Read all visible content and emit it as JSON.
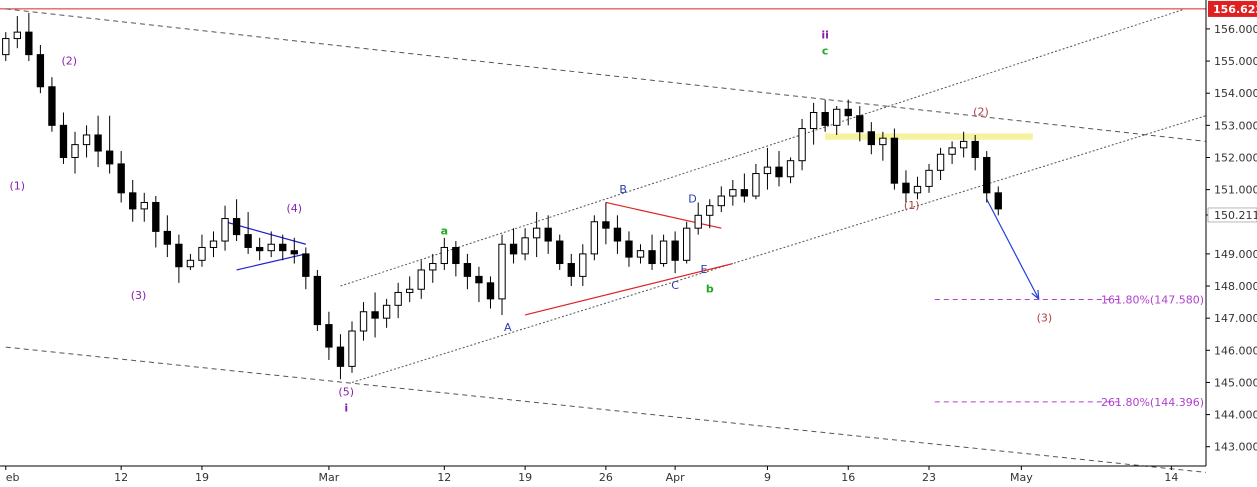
{
  "chart_data": {
    "type": "candlestick",
    "instrument_price_level": 156.622,
    "current_price": 150.211,
    "y_range": [
      142.4,
      156.9
    ],
    "y_ticks": [
      "156.000",
      "155.000",
      "154.000",
      "153.000",
      "152.000",
      "151.000",
      "150.211",
      "149.000",
      "148.000",
      "147.000",
      "146.000",
      "145.000",
      "144.000",
      "143.000"
    ],
    "x_ticks": [
      {
        "label": "eb",
        "idx": 0
      },
      {
        "label": "12",
        "idx": 10
      },
      {
        "label": "19",
        "idx": 17
      },
      {
        "label": "Mar",
        "idx": 28
      },
      {
        "label": "12",
        "idx": 38
      },
      {
        "label": "19",
        "idx": 45
      },
      {
        "label": "26",
        "idx": 52
      },
      {
        "label": "Apr",
        "idx": 58
      },
      {
        "label": "9",
        "idx": 66
      },
      {
        "label": "16",
        "idx": 73
      },
      {
        "label": "23",
        "idx": 80
      },
      {
        "label": "May",
        "idx": 88
      },
      {
        "label": "14",
        "idx": 101
      }
    ],
    "grid": false,
    "price_label": {
      "value": "156.622",
      "bg": "#e02020"
    },
    "current_label": {
      "value": "150.211"
    },
    "colors": {
      "up": "#ffffff",
      "down": "#000000",
      "wick": "#000000",
      "resistance": "#e02020",
      "triangle": "#2020cc",
      "correction_line": "#e02020",
      "fib": "#b040d0",
      "highlight": "#f7f2a0",
      "arrow": "#2040e0",
      "purple": "#8a20b0",
      "green": "#22aa22",
      "blue": "#2a3ab0",
      "brown": "#b04040"
    },
    "candles": [
      [
        155.2,
        155.9,
        155.0,
        155.7
      ],
      [
        155.7,
        156.4,
        155.4,
        155.9
      ],
      [
        155.9,
        156.5,
        155.0,
        155.2
      ],
      [
        155.2,
        155.5,
        154.0,
        154.2
      ],
      [
        154.2,
        154.5,
        152.8,
        153.0
      ],
      [
        153.0,
        153.4,
        151.8,
        152.0
      ],
      [
        152.0,
        152.8,
        151.5,
        152.4
      ],
      [
        152.4,
        153.0,
        152.0,
        152.7
      ],
      [
        152.7,
        153.3,
        151.7,
        152.2
      ],
      [
        152.2,
        153.3,
        151.5,
        151.8
      ],
      [
        151.8,
        152.2,
        150.6,
        150.9
      ],
      [
        150.9,
        151.3,
        150.0,
        150.4
      ],
      [
        150.4,
        150.9,
        150.0,
        150.6
      ],
      [
        150.6,
        150.8,
        149.2,
        149.7
      ],
      [
        149.7,
        150.2,
        148.9,
        149.3
      ],
      [
        149.3,
        149.6,
        148.1,
        148.6
      ],
      [
        148.6,
        149.0,
        148.5,
        148.8
      ],
      [
        148.8,
        149.6,
        148.6,
        149.2
      ],
      [
        149.2,
        149.7,
        148.9,
        149.4
      ],
      [
        149.4,
        150.5,
        149.1,
        150.1
      ],
      [
        150.1,
        150.7,
        149.4,
        149.6
      ],
      [
        149.6,
        150.3,
        149.0,
        149.2
      ],
      [
        149.2,
        149.5,
        148.8,
        149.1
      ],
      [
        149.1,
        149.7,
        148.9,
        149.3
      ],
      [
        149.3,
        149.6,
        148.8,
        149.1
      ],
      [
        149.1,
        149.5,
        148.7,
        149.0
      ],
      [
        149.0,
        149.2,
        147.9,
        148.3
      ],
      [
        148.3,
        148.5,
        146.6,
        146.8
      ],
      [
        146.8,
        147.2,
        145.7,
        146.1
      ],
      [
        146.1,
        146.5,
        145.1,
        145.5
      ],
      [
        145.5,
        146.9,
        145.3,
        146.6
      ],
      [
        146.6,
        147.5,
        146.3,
        147.2
      ],
      [
        147.2,
        147.8,
        146.4,
        147.0
      ],
      [
        147.0,
        147.6,
        146.7,
        147.4
      ],
      [
        147.4,
        148.1,
        147.0,
        147.8
      ],
      [
        147.8,
        148.3,
        147.5,
        147.9
      ],
      [
        147.9,
        148.8,
        147.6,
        148.5
      ],
      [
        148.5,
        149.0,
        148.1,
        148.7
      ],
      [
        148.7,
        149.5,
        148.5,
        149.2
      ],
      [
        149.2,
        149.4,
        148.3,
        148.7
      ],
      [
        148.7,
        149.0,
        147.9,
        148.3
      ],
      [
        148.3,
        148.6,
        147.5,
        148.1
      ],
      [
        148.1,
        148.3,
        147.3,
        147.6
      ],
      [
        147.6,
        149.6,
        147.1,
        149.3
      ],
      [
        149.3,
        149.8,
        148.7,
        149.0
      ],
      [
        149.0,
        149.8,
        148.8,
        149.5
      ],
      [
        149.5,
        150.3,
        148.9,
        149.8
      ],
      [
        149.8,
        150.2,
        149.0,
        149.4
      ],
      [
        149.4,
        149.6,
        148.5,
        148.7
      ],
      [
        148.7,
        149.0,
        148.0,
        148.3
      ],
      [
        148.3,
        149.3,
        148.0,
        149.0
      ],
      [
        149.0,
        150.2,
        148.8,
        150.0
      ],
      [
        150.0,
        150.6,
        149.3,
        149.8
      ],
      [
        149.8,
        150.2,
        149.0,
        149.4
      ],
      [
        149.4,
        149.7,
        148.6,
        148.9
      ],
      [
        148.9,
        149.3,
        148.7,
        149.1
      ],
      [
        149.1,
        149.6,
        148.5,
        148.7
      ],
      [
        148.7,
        149.6,
        148.6,
        149.4
      ],
      [
        149.4,
        149.7,
        148.4,
        148.8
      ],
      [
        148.8,
        150.0,
        148.7,
        149.8
      ],
      [
        149.8,
        150.6,
        149.6,
        150.2
      ],
      [
        150.2,
        150.7,
        149.8,
        150.5
      ],
      [
        150.5,
        151.1,
        150.3,
        150.8
      ],
      [
        150.8,
        151.3,
        150.5,
        151.0
      ],
      [
        151.0,
        151.5,
        150.6,
        150.8
      ],
      [
        150.8,
        151.8,
        150.7,
        151.5
      ],
      [
        151.5,
        152.3,
        151.0,
        151.7
      ],
      [
        151.7,
        152.2,
        151.1,
        151.4
      ],
      [
        151.4,
        152.0,
        151.2,
        151.9
      ],
      [
        151.9,
        153.2,
        151.6,
        152.9
      ],
      [
        152.9,
        153.7,
        152.4,
        153.4
      ],
      [
        153.4,
        153.8,
        152.8,
        153.0
      ],
      [
        153.0,
        153.6,
        152.7,
        153.5
      ],
      [
        153.5,
        153.8,
        153.0,
        153.3
      ],
      [
        153.3,
        153.6,
        152.5,
        152.8
      ],
      [
        152.8,
        153.1,
        152.1,
        152.4
      ],
      [
        152.4,
        152.8,
        151.9,
        152.6
      ],
      [
        152.6,
        152.9,
        151.0,
        151.2
      ],
      [
        151.2,
        151.6,
        150.6,
        150.9
      ],
      [
        150.9,
        151.4,
        150.7,
        151.1
      ],
      [
        151.1,
        151.8,
        150.9,
        151.6
      ],
      [
        151.6,
        152.3,
        151.3,
        152.1
      ],
      [
        152.1,
        152.5,
        151.8,
        152.3
      ],
      [
        152.3,
        152.8,
        152.0,
        152.5
      ],
      [
        152.5,
        152.7,
        151.6,
        152.0
      ],
      [
        152.0,
        152.2,
        150.6,
        150.9
      ],
      [
        150.9,
        151.1,
        150.2,
        150.4
      ]
    ],
    "x_index_range": [
      -0.5,
      104
    ],
    "lines": {
      "resistance": {
        "y": 156.622
      },
      "upper_outer": [
        [
          0,
          156.622
        ],
        [
          104,
          152.5
        ]
      ],
      "lower_outer": [
        [
          0,
          146.1
        ],
        [
          104,
          142.2
        ]
      ],
      "upper_inner": [
        [
          29,
          148.0
        ],
        [
          102,
          156.6
        ]
      ],
      "lower_inner": [
        [
          30,
          145.0
        ],
        [
          104,
          153.3
        ]
      ],
      "triangle": [
        [
          [
            19,
            150.0
          ],
          [
            26,
            149.3
          ]
        ],
        [
          [
            20,
            148.5
          ],
          [
            26,
            149.0
          ]
        ]
      ],
      "correction_upper": [
        [
          52,
          150.6
        ],
        [
          62,
          149.8
        ]
      ],
      "correction_lower": [
        [
          45,
          147.1
        ],
        [
          63,
          148.7
        ]
      ],
      "wave_ii_highlight": {
        "x": [
          71,
          89
        ],
        "y": [
          152.55,
          152.75
        ]
      },
      "projection_arrow": {
        "from": [
          85,
          150.7
        ],
        "to": [
          89.5,
          147.6
        ]
      }
    },
    "fib_levels": [
      {
        "label": "161.80%(147.580)",
        "value": 147.58
      },
      {
        "label": "261.80%(144.396)",
        "value": 144.396
      }
    ],
    "wave_labels": [
      {
        "text": "(1)",
        "idx": 1,
        "price": 151.0,
        "color": "purple",
        "bold": false
      },
      {
        "text": "(2)",
        "idx": 5.5,
        "price": 154.9,
        "color": "purple",
        "bold": false
      },
      {
        "text": "(3)",
        "idx": 11.5,
        "price": 147.6,
        "color": "purple",
        "bold": false
      },
      {
        "text": "(4)",
        "idx": 25,
        "price": 150.3,
        "color": "purple",
        "bold": false
      },
      {
        "text": "(5)",
        "idx": 29.5,
        "price": 144.6,
        "color": "purple",
        "bold": false
      },
      {
        "text": "i",
        "idx": 29.5,
        "price": 144.1,
        "color": "purple",
        "bold": true
      },
      {
        "text": "a",
        "idx": 38,
        "price": 149.6,
        "color": "green",
        "bold": true
      },
      {
        "text": "A",
        "idx": 43.5,
        "price": 146.6,
        "color": "blue",
        "bold": false
      },
      {
        "text": "B",
        "idx": 53.5,
        "price": 150.9,
        "color": "blue",
        "bold": false
      },
      {
        "text": "C",
        "idx": 58,
        "price": 147.9,
        "color": "blue",
        "bold": false
      },
      {
        "text": "D",
        "idx": 59.5,
        "price": 150.6,
        "color": "blue",
        "bold": false
      },
      {
        "text": "E",
        "idx": 60.5,
        "price": 148.4,
        "color": "blue",
        "bold": false
      },
      {
        "text": "b",
        "idx": 61,
        "price": 147.8,
        "color": "green",
        "bold": true
      },
      {
        "text": "ii",
        "idx": 71,
        "price": 155.7,
        "color": "purple",
        "bold": true
      },
      {
        "text": "c",
        "idx": 71,
        "price": 155.2,
        "color": "green",
        "bold": true
      },
      {
        "text": "(1)",
        "idx": 78.5,
        "price": 150.4,
        "color": "brown",
        "bold": false
      },
      {
        "text": "(2)",
        "idx": 84.5,
        "price": 153.3,
        "color": "brown",
        "bold": false
      },
      {
        "text": "(3)",
        "idx": 90,
        "price": 146.9,
        "color": "brown",
        "bold": false
      }
    ]
  }
}
